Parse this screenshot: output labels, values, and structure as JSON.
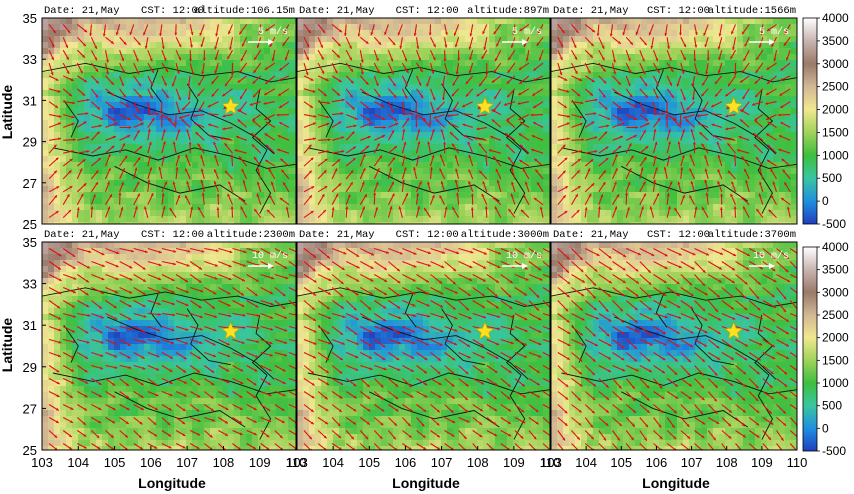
{
  "chart_data": {
    "type": "heatmap",
    "description_of_overlay": "wind vectors",
    "xlabel": "Longitude",
    "ylabel": "Latitude",
    "x_ticks": [
      "103",
      "104",
      "105",
      "106",
      "107",
      "108",
      "109",
      "110"
    ],
    "y_ticks": [
      "25",
      "27",
      "29",
      "31",
      "33",
      "35"
    ],
    "xlim": [
      103,
      110
    ],
    "ylim": [
      25,
      35
    ],
    "marker": {
      "lon": 108.2,
      "lat": 30.7
    },
    "colorbar": {
      "ticks": [
        "4000",
        "3500",
        "3000",
        "2500",
        "2000",
        "1500",
        "1000",
        "500",
        "0",
        "-500"
      ],
      "range": [
        -500,
        4000
      ],
      "stops": [
        {
          "v": -500,
          "c": "#1f3fbf"
        },
        {
          "v": 0,
          "c": "#1f8fdf"
        },
        {
          "v": 500,
          "c": "#38c6a0"
        },
        {
          "v": 1000,
          "c": "#3fbf3f"
        },
        {
          "v": 1500,
          "c": "#9fd35a"
        },
        {
          "v": 2000,
          "c": "#f0e890"
        },
        {
          "v": 2500,
          "c": "#d2b894"
        },
        {
          "v": 3000,
          "c": "#9a7a6a"
        },
        {
          "v": 3500,
          "c": "#c9b4b0"
        },
        {
          "v": 4000,
          "c": "#ffffff"
        }
      ]
    },
    "panels": [
      {
        "date": "Date: 21,May",
        "cst": "CST: 12:00",
        "altitude": "altitude:106.15m",
        "scale": "5 m/s"
      },
      {
        "date": "Date: 21,May",
        "cst": "CST: 12:00",
        "altitude": "altitude:897m",
        "scale": "5 m/s"
      },
      {
        "date": "Date: 21,May",
        "cst": "CST: 12:00",
        "altitude": "altitude:1566m",
        "scale": "5 m/s"
      },
      {
        "date": "Date: 21,May",
        "cst": "CST: 12:00",
        "altitude": "altitude:2300m",
        "scale": "10 m/s"
      },
      {
        "date": "Date: 21,May",
        "cst": "CST: 12:00",
        "altitude": "altitude:3000m",
        "scale": "10 m/s"
      },
      {
        "date": "Date: 21,May",
        "cst": "CST: 12:00",
        "altitude": "altitude:3700m",
        "scale": "10 m/s"
      }
    ]
  }
}
